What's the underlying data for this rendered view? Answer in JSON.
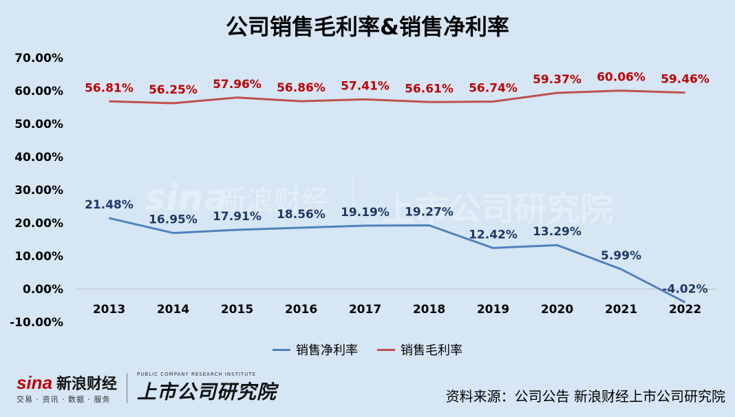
{
  "chart_data": {
    "type": "line",
    "title": "公司销售毛利率&销售净利率",
    "categories": [
      "2013",
      "2014",
      "2015",
      "2016",
      "2017",
      "2018",
      "2019",
      "2020",
      "2021",
      "2022"
    ],
    "series": [
      {
        "name": "销售毛利率",
        "color": "#c0504d",
        "label_color": "#c00000",
        "values": [
          56.81,
          56.25,
          57.96,
          56.86,
          57.41,
          56.61,
          56.74,
          59.37,
          60.06,
          59.46
        ],
        "labels": [
          "56.81%",
          "56.25%",
          "57.96%",
          "56.86%",
          "57.41%",
          "56.61%",
          "56.74%",
          "59.37%",
          "60.06%",
          "59.46%"
        ]
      },
      {
        "name": "销售净利率",
        "color": "#4f81bd",
        "label_color": "#1f3864",
        "values": [
          21.48,
          16.95,
          17.91,
          18.56,
          19.19,
          19.27,
          12.42,
          13.29,
          5.99,
          -4.02
        ],
        "labels": [
          "21.48%",
          "16.95%",
          "17.91%",
          "18.56%",
          "19.19%",
          "19.27%",
          "12.42%",
          "13.29%",
          "5.99%",
          "-4.02%"
        ]
      }
    ],
    "ylim": [
      -10,
      70
    ],
    "yticks": [
      -10,
      0,
      10,
      20,
      30,
      40,
      50,
      60,
      70
    ],
    "ytick_labels": [
      "-10.00%",
      "0.00%",
      "10.00%",
      "20.00%",
      "30.00%",
      "40.00%",
      "50.00%",
      "60.00%",
      "70.00%"
    ],
    "grid": false,
    "legend_position": "bottom",
    "legend_order": [
      "销售净利率",
      "销售毛利率"
    ]
  },
  "watermark": {
    "brand": "sina",
    "brand_cn": "新浪财经",
    "institute": "上市公司研究院"
  },
  "footer": {
    "logo": {
      "sina_word": "sina",
      "sina_cn": "新浪财经",
      "sina_sub": "交易 · 资讯 · 数据 · 服务",
      "institute_en": "PUBLIC COMPANY RESEARCH INSTITUTE",
      "institute_cn": "上市公司研究院"
    },
    "source": "资料来源：公司公告 新浪财经上市公司研究院"
  }
}
